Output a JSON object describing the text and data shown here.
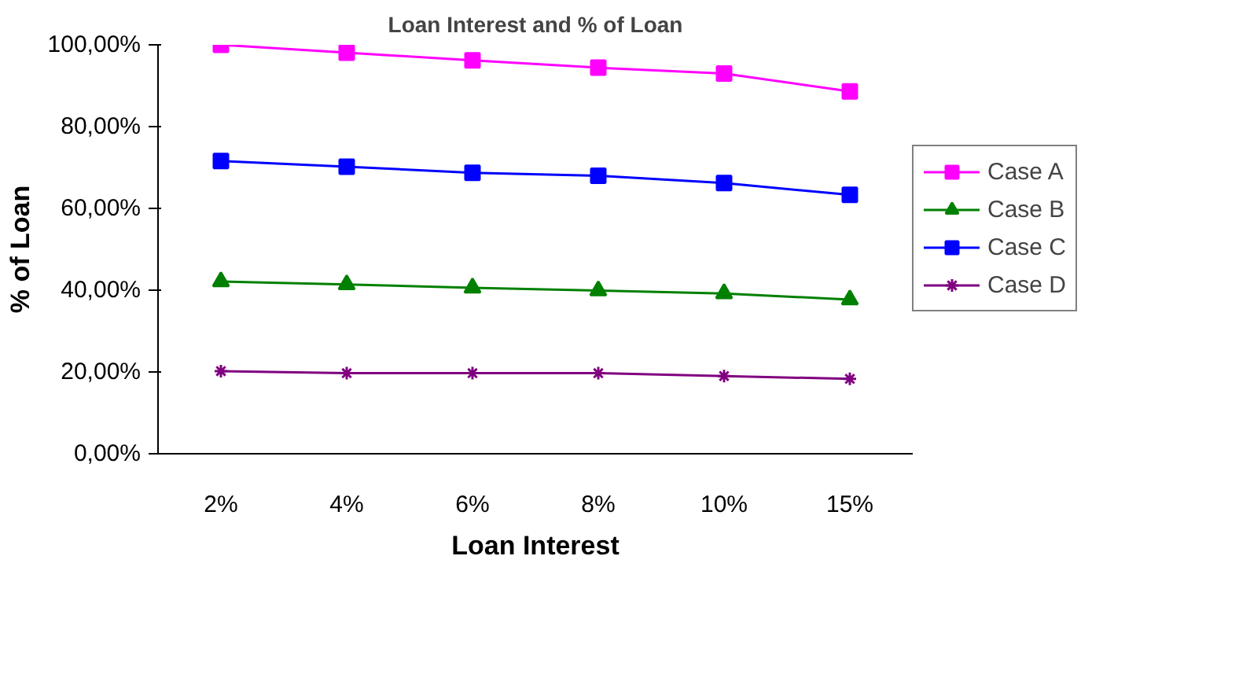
{
  "chart_data": {
    "type": "line",
    "title": "Loan Interest and % of Loan",
    "xlabel": "Loan Interest",
    "ylabel": "% of Loan",
    "categories": [
      "2%",
      "4%",
      "6%",
      "8%",
      "10%",
      "15%"
    ],
    "series": [
      {
        "name": "Case A",
        "color": "#ff00ff",
        "marker": "square",
        "values": [
          100.0,
          98.1,
          96.2,
          94.4,
          93.0,
          88.6
        ]
      },
      {
        "name": "Case B",
        "color": "#008000",
        "marker": "triangle",
        "values": [
          42.1,
          41.4,
          40.6,
          39.9,
          39.2,
          37.7
        ]
      },
      {
        "name": "Case C",
        "color": "#0000ff",
        "marker": "square",
        "values": [
          71.6,
          70.2,
          68.7,
          68.0,
          66.2,
          63.3
        ]
      },
      {
        "name": "Case D",
        "color": "#800080",
        "marker": "cross",
        "values": [
          20.2,
          19.7,
          19.7,
          19.7,
          19.0,
          18.3
        ]
      }
    ],
    "ylim": [
      0,
      100
    ],
    "yticks": [
      {
        "value": 0,
        "label": "0,00%"
      },
      {
        "value": 20,
        "label": "20,00%"
      },
      {
        "value": 40,
        "label": "40,00%"
      },
      {
        "value": 60,
        "label": "60,00%"
      },
      {
        "value": 80,
        "label": "80,00%"
      },
      {
        "value": 100,
        "label": "100,00%"
      }
    ],
    "grid": false,
    "legend": "right",
    "line_style": "solid"
  }
}
